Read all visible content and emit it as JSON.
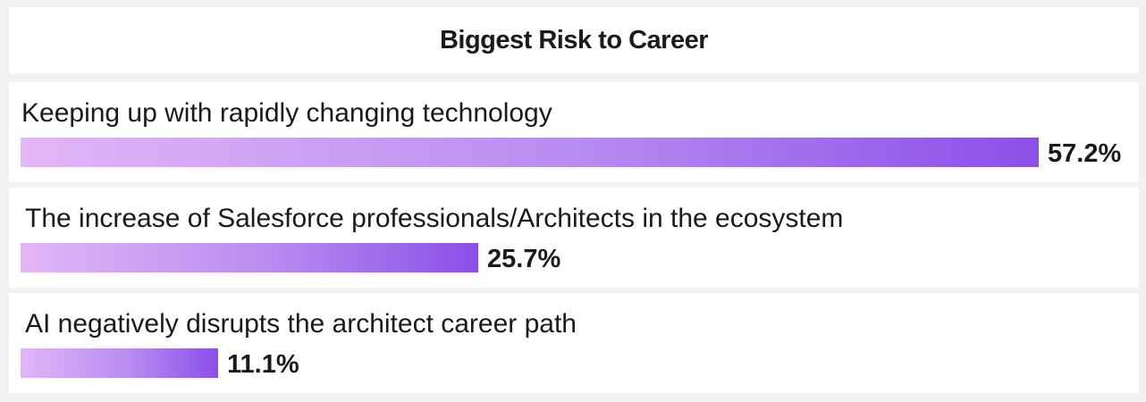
{
  "chart_data": {
    "type": "bar",
    "orientation": "horizontal",
    "title": "Biggest Risk to Career",
    "categories": [
      "Keeping up with rapidly changing technology",
      "The increase of Salesforce professionals/Architects in the ecosystem",
      "AI negatively disrupts the architect career path"
    ],
    "values": [
      57.2,
      25.7,
      11.1
    ],
    "value_labels": [
      "57.2%",
      "25.7%",
      "11.1%"
    ],
    "unit": "%",
    "xlim": [
      0,
      57.2
    ],
    "grid": false,
    "legend": "none",
    "bar_gradient": [
      "#e2b6f7",
      "#8b4fe8"
    ]
  }
}
